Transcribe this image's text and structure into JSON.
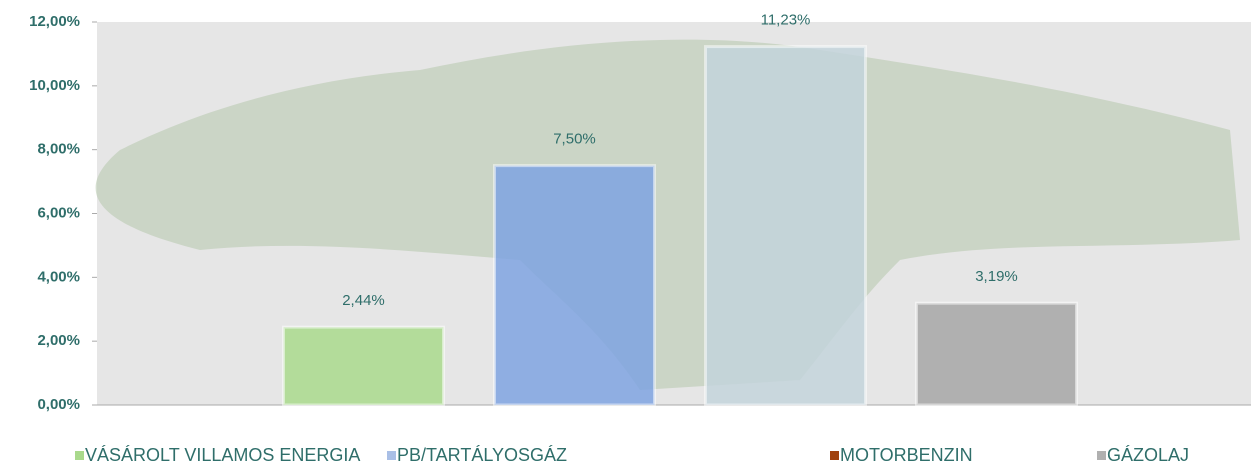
{
  "chart_data": {
    "type": "bar",
    "series": [
      {
        "name": "VÁSÁROLT VILLAMOS ENERGIA",
        "color": "#a9d98c",
        "marker_color": "#a9d98c",
        "values": [
          2.44
        ],
        "value_labels": [
          "2,44%"
        ]
      },
      {
        "name": "PB/TARTÁLYOSGÁZ",
        "color": "#7fa3e0",
        "marker_color": "#a9bfe6",
        "values": [
          7.5
        ],
        "value_labels": [
          "7,50%"
        ]
      },
      {
        "name": "MOTORBENZIN",
        "color": "#c3d3da",
        "marker_color": "#a0410d",
        "values": [
          11.23
        ],
        "value_labels": [
          "11,23%"
        ]
      },
      {
        "name": "GÁZOLAJ",
        "color": "#a6a6a6",
        "marker_color": "#b0b0b0",
        "values": [
          3.19
        ],
        "value_labels": [
          "3,19%"
        ]
      }
    ],
    "ylim": [
      0,
      12
    ],
    "yticks": [
      {
        "value": 0,
        "label": "0,00%"
      },
      {
        "value": 2,
        "label": "2,00%"
      },
      {
        "value": 4,
        "label": "4,00%"
      },
      {
        "value": 6,
        "label": "6,00%"
      },
      {
        "value": 8,
        "label": "8,00%"
      },
      {
        "value": 10,
        "label": "10,00%"
      },
      {
        "value": 12,
        "label": "12,00%"
      }
    ],
    "legend": "bottom"
  }
}
